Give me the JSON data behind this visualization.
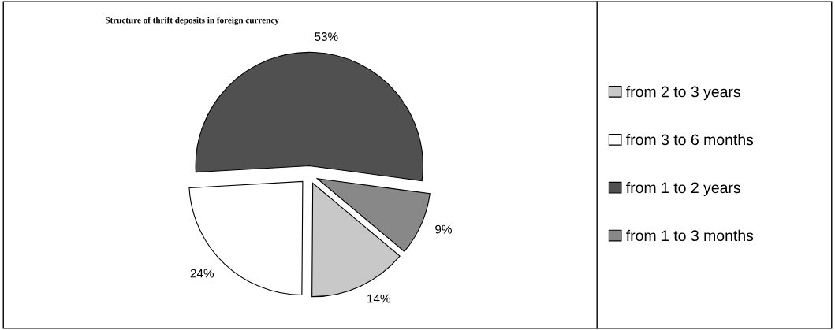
{
  "chart_data": {
    "type": "pie",
    "title": "Structure of thrift deposits in foreign currency",
    "categories": [
      "from 2 to 3 years",
      "from 3 to 6 months",
      "from 1 to 2 years",
      "from 1 to 3 months"
    ],
    "values": [
      14,
      24,
      53,
      9
    ],
    "value_labels": [
      "14%",
      "24%",
      "53%",
      "9%"
    ],
    "colors": [
      "#c8c8c8",
      "#ffffff",
      "#505050",
      "#888888"
    ],
    "legend": "right"
  }
}
